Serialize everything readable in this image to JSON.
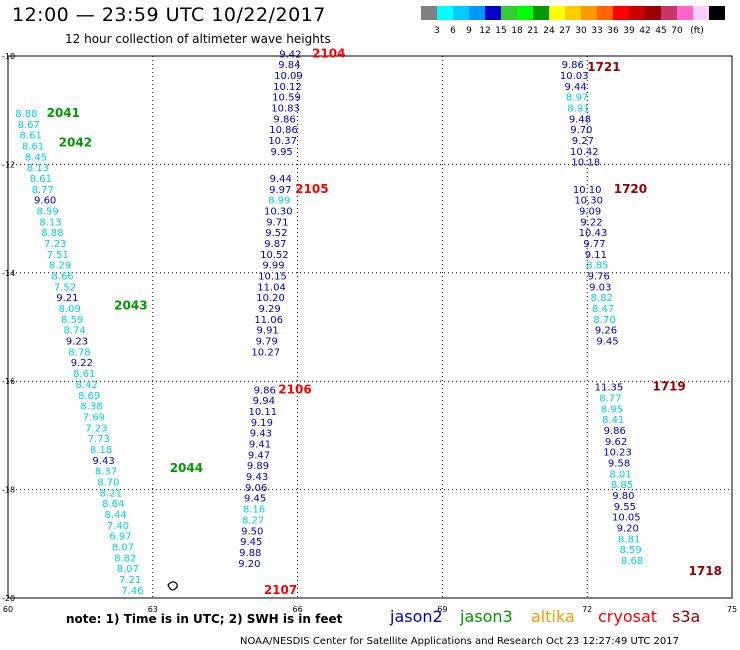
{
  "header": {
    "title": "12:00 — 23:59 UTC 10/22/2017",
    "subtitle": "12 hour collection of altimeter wave heights"
  },
  "colorbar": {
    "unit": "(ft)",
    "colors": [
      "#808080",
      "#00ffff",
      "#00ccff",
      "#0099ff",
      "#0000cc",
      "#33cc33",
      "#00ff00",
      "#009900",
      "#ffff00",
      "#ffcc00",
      "#ff9900",
      "#ff6600",
      "#ff0000",
      "#cc0000",
      "#990000",
      "#cc3366",
      "#ff66cc",
      "#ffccff",
      "#000000"
    ],
    "labels": [
      "3",
      "6",
      "9",
      "12",
      "15",
      "18",
      "21",
      "24",
      "27",
      "30",
      "33",
      "36",
      "39",
      "42",
      "45",
      "70"
    ]
  },
  "axes": {
    "x": {
      "min": 60,
      "max": 75,
      "ticks": [
        60,
        63,
        66,
        69,
        72,
        75
      ]
    },
    "y": {
      "min": -20,
      "max": -10,
      "ticks": [
        -10,
        -12,
        -14,
        -16,
        -18,
        -20
      ]
    }
  },
  "colors": {
    "c9": "#00ccff",
    "c12": "#0000cc",
    "c15": "#00ff00",
    "timeRed": "#ff0000",
    "timeDark": "#990000",
    "timeGreen": "#009900",
    "text": "#000000"
  },
  "chart_data": {
    "type": "scatter",
    "x_unit": "longitude (deg E)",
    "y_unit": "latitude (deg)",
    "tracks": [
      {
        "satellite": "jason3",
        "time_labels": [
          {
            "text": "2041",
            "lon": 60.8,
            "lat": -11.05
          },
          {
            "text": "2042",
            "lon": 61.05,
            "lat": -11.6
          },
          {
            "text": "2043",
            "lon": 62.2,
            "lat": -14.6
          },
          {
            "text": "2044",
            "lon": 63.35,
            "lat": -17.6
          }
        ],
        "points": [
          {
            "v": "8.88",
            "lon": 60.38,
            "lat": -11.05
          },
          {
            "v": "8.67",
            "lon": 60.43,
            "lat": -11.25
          },
          {
            "v": "8.61",
            "lon": 60.47,
            "lat": -11.45
          },
          {
            "v": "8.61",
            "lon": 60.52,
            "lat": -11.65
          },
          {
            "v": "8.45",
            "lon": 60.58,
            "lat": -11.85
          },
          {
            "v": "8.13",
            "lon": 60.62,
            "lat": -12.05
          },
          {
            "v": "8.61",
            "lon": 60.68,
            "lat": -12.25
          },
          {
            "v": "8.77",
            "lon": 60.72,
            "lat": -12.45
          },
          {
            "v": "9.60",
            "lon": 60.77,
            "lat": -12.65
          },
          {
            "v": "8.59",
            "lon": 60.82,
            "lat": -12.85
          },
          {
            "v": "8.13",
            "lon": 60.88,
            "lat": -13.05
          },
          {
            "v": "8.88",
            "lon": 60.92,
            "lat": -13.25
          },
          {
            "v": "7.23",
            "lon": 60.98,
            "lat": -13.45
          },
          {
            "v": "7.51",
            "lon": 61.03,
            "lat": -13.65
          },
          {
            "v": "8.29",
            "lon": 61.08,
            "lat": -13.85
          },
          {
            "v": "8.66",
            "lon": 61.13,
            "lat": -14.05
          },
          {
            "v": "7.52",
            "lon": 61.18,
            "lat": -14.25
          },
          {
            "v": "9.21",
            "lon": 61.23,
            "lat": -14.45
          },
          {
            "v": "8.09",
            "lon": 61.28,
            "lat": -14.65
          },
          {
            "v": "8.59",
            "lon": 61.33,
            "lat": -14.85
          },
          {
            "v": "8.74",
            "lon": 61.38,
            "lat": -15.05
          },
          {
            "v": "9.23",
            "lon": 61.43,
            "lat": -15.25
          },
          {
            "v": "8.78",
            "lon": 61.48,
            "lat": -15.45
          },
          {
            "v": "9.22",
            "lon": 61.53,
            "lat": -15.65
          },
          {
            "v": "8.61",
            "lon": 61.58,
            "lat": -15.85
          },
          {
            "v": "8.42",
            "lon": 61.63,
            "lat": -16.05
          },
          {
            "v": "8.69",
            "lon": 61.68,
            "lat": -16.25
          },
          {
            "v": "8.38",
            "lon": 61.73,
            "lat": -16.45
          },
          {
            "v": "7.69",
            "lon": 61.78,
            "lat": -16.65
          },
          {
            "v": "7.23",
            "lon": 61.83,
            "lat": -16.85
          },
          {
            "v": "7.73",
            "lon": 61.88,
            "lat": -17.05
          },
          {
            "v": "8.18",
            "lon": 61.93,
            "lat": -17.25
          },
          {
            "v": "9.43",
            "lon": 61.98,
            "lat": -17.45
          },
          {
            "v": "8.37",
            "lon": 62.03,
            "lat": -17.65
          },
          {
            "v": "8.70",
            "lon": 62.08,
            "lat": -17.85
          },
          {
            "v": "8.21",
            "lon": 62.13,
            "lat": -18.05
          },
          {
            "v": "8.64",
            "lon": 62.18,
            "lat": -18.25
          },
          {
            "v": "8.44",
            "lon": 62.23,
            "lat": -18.45
          },
          {
            "v": "7.40",
            "lon": 62.28,
            "lat": -18.65
          },
          {
            "v": "6.97",
            "lon": 62.33,
            "lat": -18.85
          },
          {
            "v": "8.07",
            "lon": 62.38,
            "lat": -19.05
          },
          {
            "v": "8.82",
            "lon": 62.43,
            "lat": -19.25
          },
          {
            "v": "8.07",
            "lon": 62.48,
            "lat": -19.45
          },
          {
            "v": "7.21",
            "lon": 62.53,
            "lat": -19.65
          },
          {
            "v": "7.46",
            "lon": 62.58,
            "lat": -19.85
          }
        ]
      },
      {
        "satellite": "jason2",
        "time_labels": [
          {
            "text": "2104",
            "lon": 66.3,
            "lat": -9.95
          },
          {
            "text": "2105",
            "lon": 65.95,
            "lat": -12.45
          },
          {
            "text": "2106",
            "lon": 65.6,
            "lat": -16.15
          },
          {
            "text": "2107",
            "lon": 65.3,
            "lat": -19.85
          }
        ],
        "points": [
          {
            "v": "9.42",
            "lon": 65.85,
            "lat": -9.95
          },
          {
            "v": "9.84",
            "lon": 65.83,
            "lat": -10.15
          },
          {
            "v": "10.09",
            "lon": 65.81,
            "lat": -10.35
          },
          {
            "v": "10.12",
            "lon": 65.79,
            "lat": -10.55
          },
          {
            "v": "10.59",
            "lon": 65.77,
            "lat": -10.75
          },
          {
            "v": "10.83",
            "lon": 65.75,
            "lat": -10.95
          },
          {
            "v": "9.86",
            "lon": 65.73,
            "lat": -11.15
          },
          {
            "v": "10.86",
            "lon": 65.71,
            "lat": -11.35
          },
          {
            "v": "10.37",
            "lon": 65.69,
            "lat": -11.55
          },
          {
            "v": "9.95",
            "lon": 65.67,
            "lat": -11.75
          },
          {
            "v": "9.44",
            "lon": 65.65,
            "lat": -12.25
          },
          {
            "v": "9.97",
            "lon": 65.64,
            "lat": -12.45
          },
          {
            "v": "8.99",
            "lon": 65.62,
            "lat": -12.65
          },
          {
            "v": "10.30",
            "lon": 65.6,
            "lat": -12.85
          },
          {
            "v": "9.71",
            "lon": 65.58,
            "lat": -13.05
          },
          {
            "v": "9.52",
            "lon": 65.56,
            "lat": -13.25
          },
          {
            "v": "9.87",
            "lon": 65.54,
            "lat": -13.45
          },
          {
            "v": "10.52",
            "lon": 65.52,
            "lat": -13.65
          },
          {
            "v": "9.99",
            "lon": 65.5,
            "lat": -13.85
          },
          {
            "v": "10.15",
            "lon": 65.48,
            "lat": -14.05
          },
          {
            "v": "11.04",
            "lon": 65.46,
            "lat": -14.25
          },
          {
            "v": "10.20",
            "lon": 65.44,
            "lat": -14.45
          },
          {
            "v": "9.29",
            "lon": 65.42,
            "lat": -14.65
          },
          {
            "v": "11.06",
            "lon": 65.4,
            "lat": -14.85
          },
          {
            "v": "9.91",
            "lon": 65.38,
            "lat": -15.05
          },
          {
            "v": "9.79",
            "lon": 65.36,
            "lat": -15.25
          },
          {
            "v": "10.27",
            "lon": 65.34,
            "lat": -15.45
          },
          {
            "v": "9.86",
            "lon": 65.32,
            "lat": -16.15
          },
          {
            "v": "9.94",
            "lon": 65.3,
            "lat": -16.35
          },
          {
            "v": "10.11",
            "lon": 65.28,
            "lat": -16.55
          },
          {
            "v": "9.19",
            "lon": 65.26,
            "lat": -16.75
          },
          {
            "v": "9.43",
            "lon": 65.24,
            "lat": -16.95
          },
          {
            "v": "9.41",
            "lon": 65.22,
            "lat": -17.15
          },
          {
            "v": "9.47",
            "lon": 65.2,
            "lat": -17.35
          },
          {
            "v": "9.89",
            "lon": 65.18,
            "lat": -17.55
          },
          {
            "v": "9.43",
            "lon": 65.16,
            "lat": -17.75
          },
          {
            "v": "9.06",
            "lon": 65.14,
            "lat": -17.95
          },
          {
            "v": "9.45",
            "lon": 65.12,
            "lat": -18.15
          },
          {
            "v": "8.16",
            "lon": 65.1,
            "lat": -18.35
          },
          {
            "v": "8.27",
            "lon": 65.08,
            "lat": -18.55
          },
          {
            "v": "9.50",
            "lon": 65.06,
            "lat": -18.75
          },
          {
            "v": "9.45",
            "lon": 65.04,
            "lat": -18.95
          },
          {
            "v": "9.88",
            "lon": 65.02,
            "lat": -19.15
          },
          {
            "v": "9.20",
            "lon": 65.0,
            "lat": -19.35
          }
        ]
      },
      {
        "satellite": "jason2",
        "time_labels": [
          {
            "text": "1721",
            "lon": 72.0,
            "lat": -10.2
          },
          {
            "text": "1720",
            "lon": 72.55,
            "lat": -12.45
          },
          {
            "text": "1719",
            "lon": 73.35,
            "lat": -16.1
          },
          {
            "text": "1718",
            "lon": 74.1,
            "lat": -19.5
          }
        ],
        "points": [
          {
            "v": "9.86",
            "lon": 71.7,
            "lat": -10.15
          },
          {
            "v": "10.03",
            "lon": 71.73,
            "lat": -10.35
          },
          {
            "v": "9.44",
            "lon": 71.76,
            "lat": -10.55
          },
          {
            "v": "8.97",
            "lon": 71.79,
            "lat": -10.75
          },
          {
            "v": "8.91",
            "lon": 71.82,
            "lat": -10.95
          },
          {
            "v": "9.48",
            "lon": 71.85,
            "lat": -11.15
          },
          {
            "v": "9.70",
            "lon": 71.88,
            "lat": -11.35
          },
          {
            "v": "9.27",
            "lon": 71.91,
            "lat": -11.55
          },
          {
            "v": "10.42",
            "lon": 71.94,
            "lat": -11.75
          },
          {
            "v": "10.18",
            "lon": 71.97,
            "lat": -11.95
          },
          {
            "v": "10.10",
            "lon": 72.0,
            "lat": -12.45
          },
          {
            "v": "10.30",
            "lon": 72.03,
            "lat": -12.65
          },
          {
            "v": "9.09",
            "lon": 72.06,
            "lat": -12.85
          },
          {
            "v": "9.22",
            "lon": 72.09,
            "lat": -13.05
          },
          {
            "v": "10.43",
            "lon": 72.12,
            "lat": -13.25
          },
          {
            "v": "9.77",
            "lon": 72.15,
            "lat": -13.45
          },
          {
            "v": "9.11",
            "lon": 72.18,
            "lat": -13.65
          },
          {
            "v": "8.85",
            "lon": 72.21,
            "lat": -13.85
          },
          {
            "v": "9.76",
            "lon": 72.24,
            "lat": -14.05
          },
          {
            "v": "9.03",
            "lon": 72.27,
            "lat": -14.25
          },
          {
            "v": "8.82",
            "lon": 72.3,
            "lat": -14.45
          },
          {
            "v": "8.47",
            "lon": 72.33,
            "lat": -14.65
          },
          {
            "v": "8.70",
            "lon": 72.36,
            "lat": -14.85
          },
          {
            "v": "9.26",
            "lon": 72.39,
            "lat": -15.05
          },
          {
            "v": "9.45",
            "lon": 72.42,
            "lat": -15.25
          },
          {
            "v": "11.35",
            "lon": 72.45,
            "lat": -16.1
          },
          {
            "v": "8.77",
            "lon": 72.48,
            "lat": -16.3
          },
          {
            "v": "8.95",
            "lon": 72.51,
            "lat": -16.5
          },
          {
            "v": "8.41",
            "lon": 72.54,
            "lat": -16.7
          },
          {
            "v": "9.86",
            "lon": 72.57,
            "lat": -16.9
          },
          {
            "v": "9.62",
            "lon": 72.6,
            "lat": -17.1
          },
          {
            "v": "10.23",
            "lon": 72.63,
            "lat": -17.3
          },
          {
            "v": "9.58",
            "lon": 72.66,
            "lat": -17.5
          },
          {
            "v": "8.01",
            "lon": 72.69,
            "lat": -17.7
          },
          {
            "v": "8.85",
            "lon": 72.72,
            "lat": -17.9
          },
          {
            "v": "9.80",
            "lon": 72.75,
            "lat": -18.1
          },
          {
            "v": "9.55",
            "lon": 72.78,
            "lat": -18.3
          },
          {
            "v": "10.05",
            "lon": 72.81,
            "lat": -18.5
          },
          {
            "v": "9.20",
            "lon": 72.84,
            "lat": -18.7
          },
          {
            "v": "8.81",
            "lon": 72.87,
            "lat": -18.9
          },
          {
            "v": "8.59",
            "lon": 72.9,
            "lat": -19.1
          },
          {
            "v": "8.68",
            "lon": 72.93,
            "lat": -19.3
          }
        ]
      }
    ]
  },
  "footer": {
    "note": "note:  1) Time is in UTC;  2) SWH is in feet",
    "legend": [
      {
        "name": "jason2",
        "color": "#0000cc"
      },
      {
        "name": "jason3",
        "color": "#009900"
      },
      {
        "name": "altika",
        "color": "#ff9900"
      },
      {
        "name": "cryosat",
        "color": "#ff0000"
      },
      {
        "name": "s3a",
        "color": "#990000"
      }
    ],
    "credit": "NOAA/NESDIS Center for Satellite Applications and Research     Oct 23 12:27:49 UTC 2017"
  }
}
